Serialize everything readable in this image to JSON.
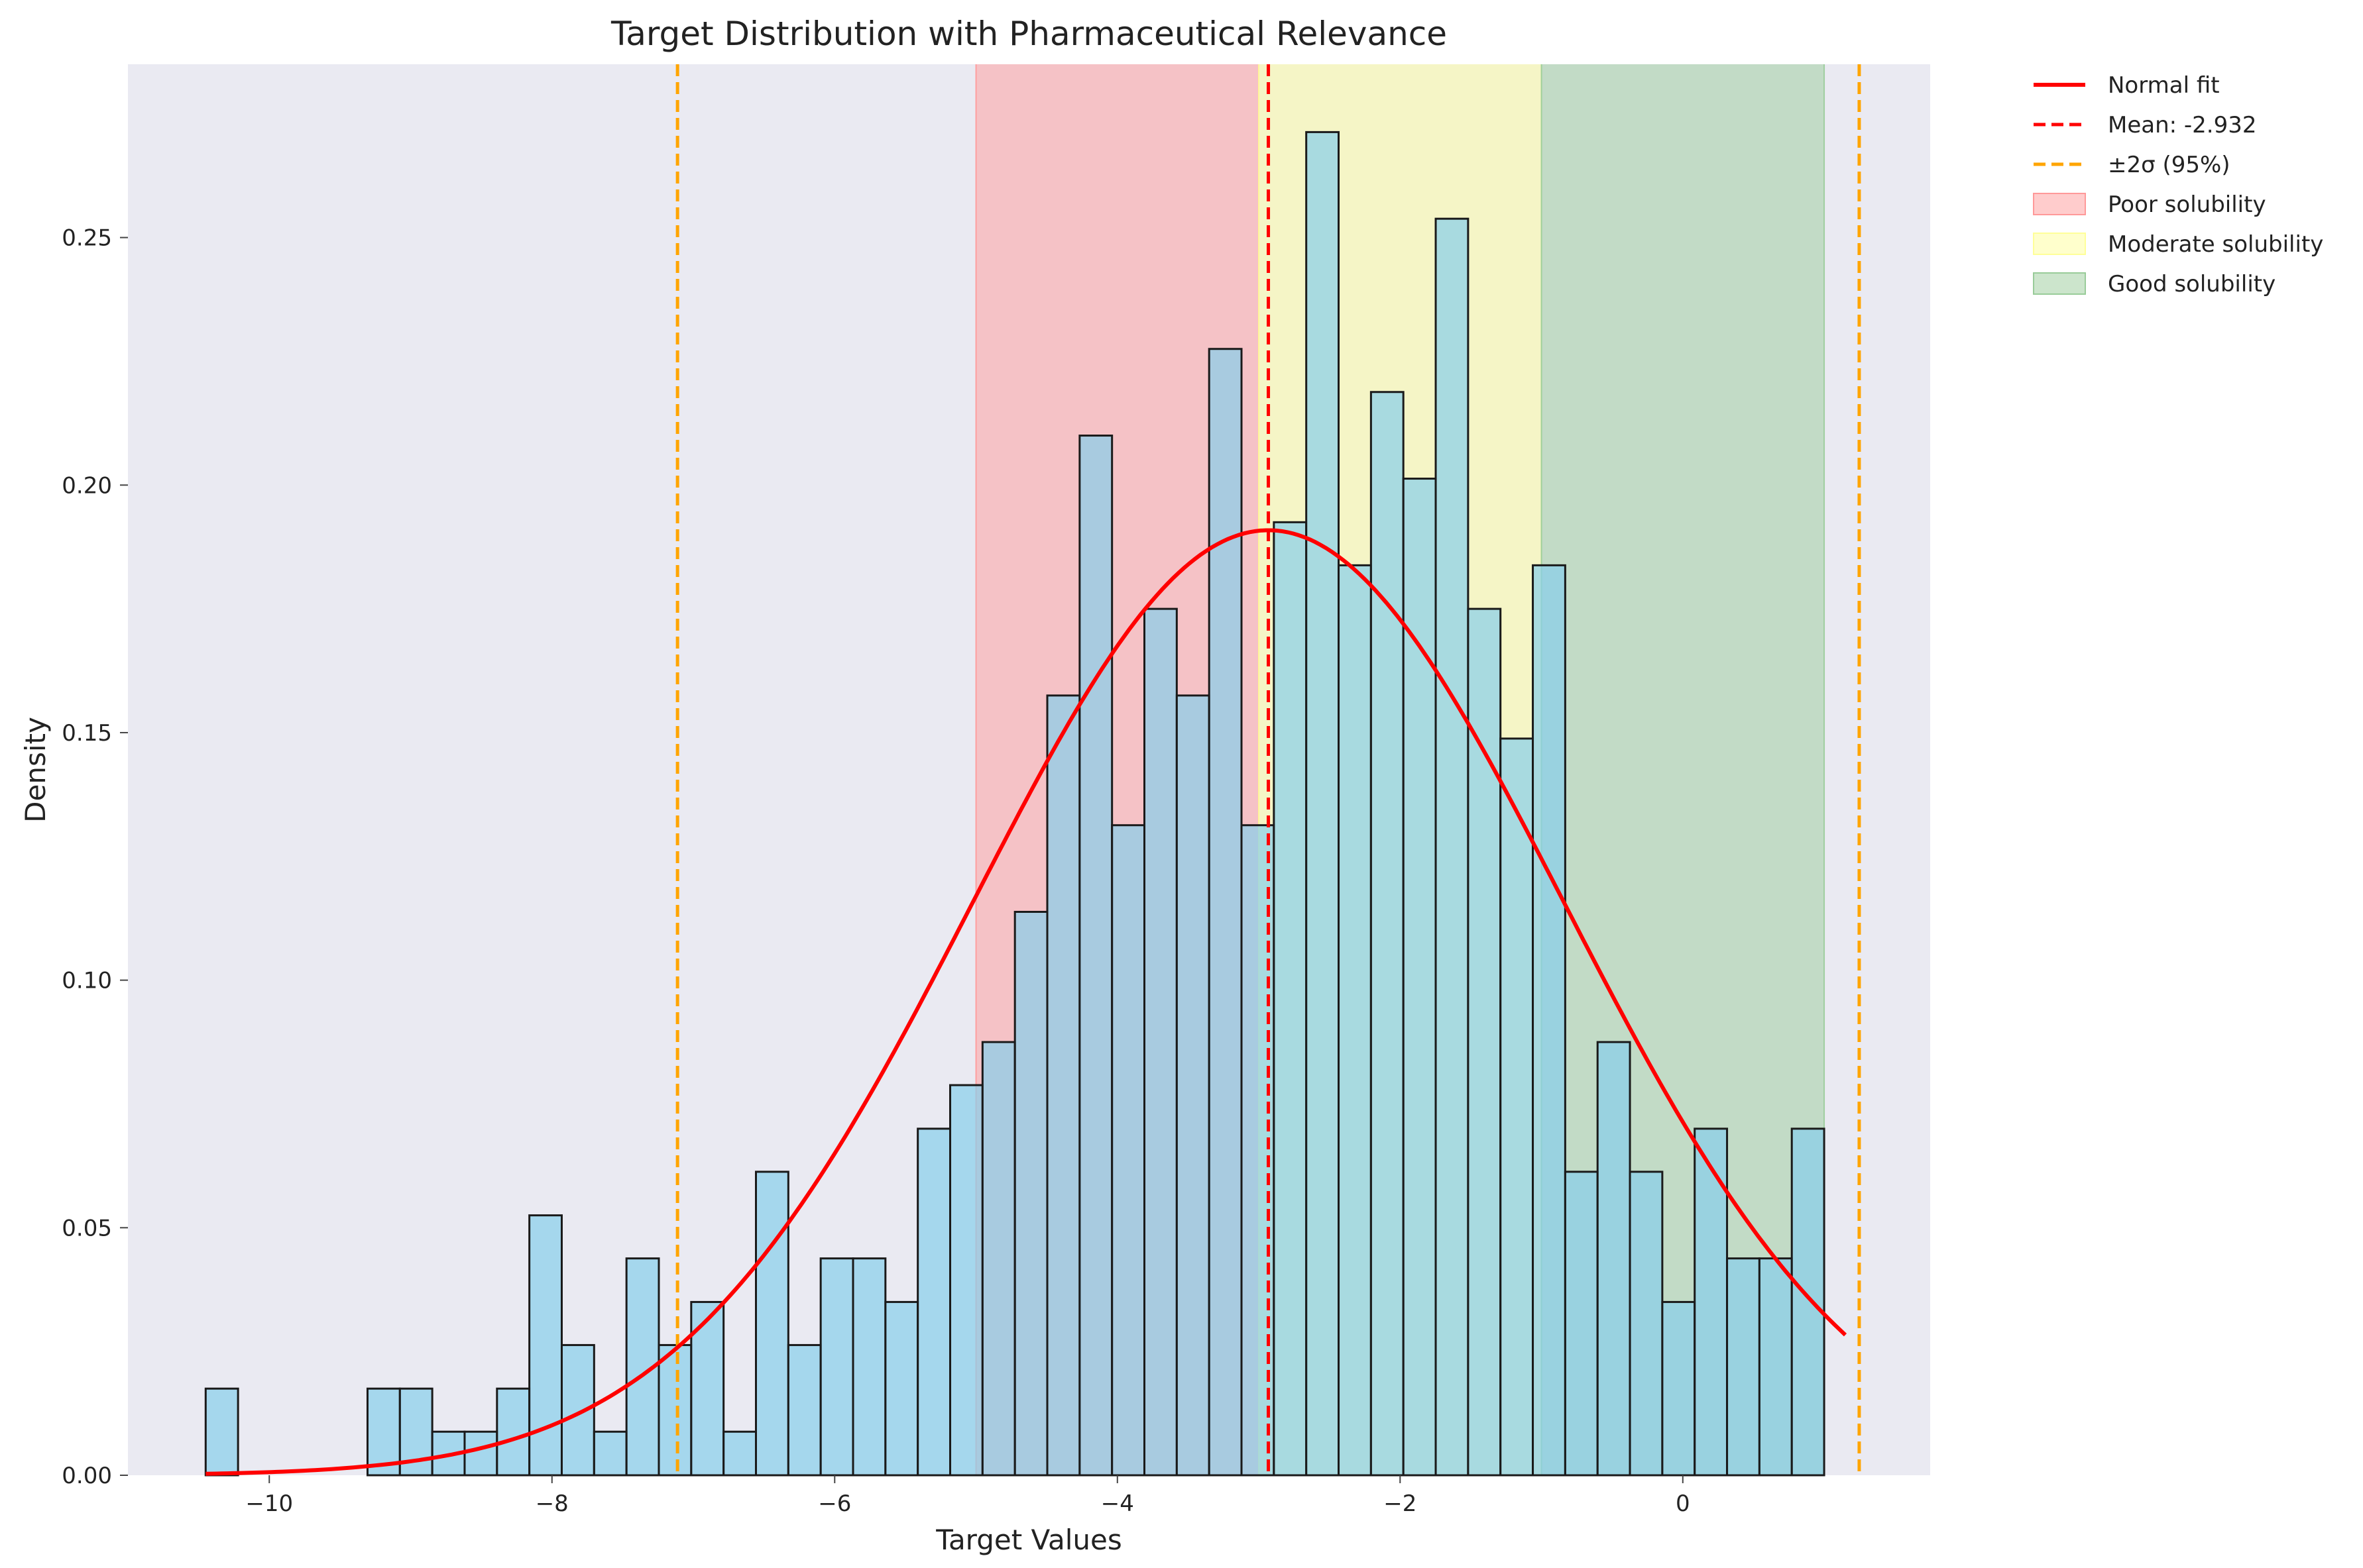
{
  "chart_data": {
    "type": "bar",
    "title": "Target Distribution with Pharmaceutical Relevance",
    "xlabel": "Target Values",
    "ylabel": "Density",
    "xlim": [
      -11.0,
      1.75
    ],
    "ylim": [
      0,
      0.285
    ],
    "x_ticks": [
      -10,
      -8,
      -6,
      -4,
      -2,
      0
    ],
    "y_ticks": [
      0.0,
      0.05,
      0.1,
      0.15,
      0.2,
      0.25
    ],
    "grid": false,
    "legend_position": "outside-top-right",
    "histogram": {
      "name": "Target Values",
      "bin_start": -10.45,
      "bin_width": 0.229,
      "densities": [
        0.0175,
        0.0,
        0.0,
        0.0,
        0.0,
        0.0175,
        0.0175,
        0.0088,
        0.0088,
        0.0175,
        0.0525,
        0.0263,
        0.0088,
        0.0438,
        0.0263,
        0.035,
        0.0088,
        0.0613,
        0.0263,
        0.0438,
        0.0438,
        0.035,
        0.07,
        0.0788,
        0.0875,
        0.1138,
        0.1575,
        0.21,
        0.1313,
        0.175,
        0.1575,
        0.2275,
        0.1313,
        0.1925,
        0.2713,
        0.1838,
        0.2188,
        0.2013,
        0.2538,
        0.175,
        0.1488,
        0.1838,
        0.0613,
        0.0875,
        0.0613,
        0.035,
        0.07,
        0.0438,
        0.0438,
        0.07
      ],
      "color": "#87ceeb",
      "edge_color": "#1a1a1a"
    },
    "normal_fit": {
      "name": "Normal fit",
      "mean": -2.932,
      "std": 2.09,
      "x_range": [
        -10.45,
        1.15
      ],
      "color": "#ff0000"
    },
    "lines": [
      {
        "name": "Mean: -2.932",
        "x": -2.932,
        "color": "#ff0000",
        "legend": true
      },
      {
        "name": "±2σ (95%)",
        "x": -7.112,
        "color": "#ffa500",
        "legend": true
      },
      {
        "name": "±2σ (95%)",
        "x": 1.248,
        "color": "#ffa500",
        "legend": false
      }
    ],
    "regions": [
      {
        "name": "Poor solubility",
        "x0": -5.0,
        "x1": -3.0,
        "color": "#ff9999",
        "alpha": 0.5
      },
      {
        "name": "Moderate solubility",
        "x0": -3.0,
        "x1": -1.0,
        "color": "#ffff99",
        "alpha": 0.5
      },
      {
        "name": "Good solubility",
        "x0": -1.0,
        "x1": 1.0,
        "color": "#99cc99",
        "alpha": 0.5
      }
    ],
    "colors": {
      "plot_background": "#eaeaf2",
      "figure_background": "#ffffff"
    }
  }
}
